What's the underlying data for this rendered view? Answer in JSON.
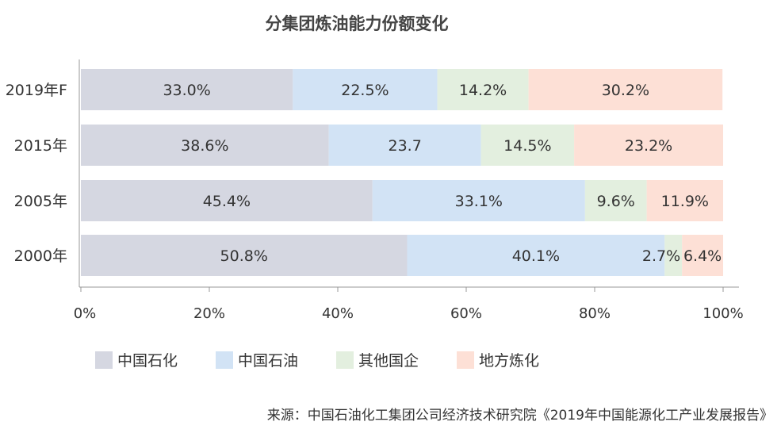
{
  "chart_data": {
    "type": "bar",
    "orientation": "horizontal",
    "stacked": true,
    "title": "分集团炼油能力份额变化",
    "categories": [
      "2019年F",
      "2015年",
      "2005年",
      "2000年"
    ],
    "series": [
      {
        "name": "中国石化",
        "color": "#d5d7e1",
        "values": [
          33.0,
          38.6,
          45.4,
          50.8
        ],
        "labels": [
          "33.0%",
          "38.6%",
          "45.4%",
          "50.8%"
        ]
      },
      {
        "name": "中国石油",
        "color": "#d2e3f5",
        "values": [
          22.5,
          23.7,
          33.1,
          40.1
        ],
        "labels": [
          "22.5%",
          "23.7",
          "33.1%",
          "40.1%"
        ]
      },
      {
        "name": "其他国企",
        "color": "#e3efdf",
        "values": [
          14.2,
          14.5,
          9.6,
          2.7
        ],
        "labels": [
          "14.2%",
          "14.5%",
          "9.6%",
          "2.7%"
        ]
      },
      {
        "name": "地方炼化",
        "color": "#fde0d6",
        "values": [
          30.2,
          23.2,
          11.9,
          6.4
        ],
        "labels": [
          "30.2%",
          "23.2%",
          "11.9%",
          "6.4%"
        ]
      }
    ],
    "xlim": [
      0,
      100
    ],
    "xticks": [
      "0%",
      "20%",
      "40%",
      "60%",
      "80%",
      "100%"
    ],
    "grid": false,
    "legend": "bottom"
  },
  "source": "来源：中国石油化工集团公司经济技术研究院《2019年中国能源化工产业发展报告》"
}
